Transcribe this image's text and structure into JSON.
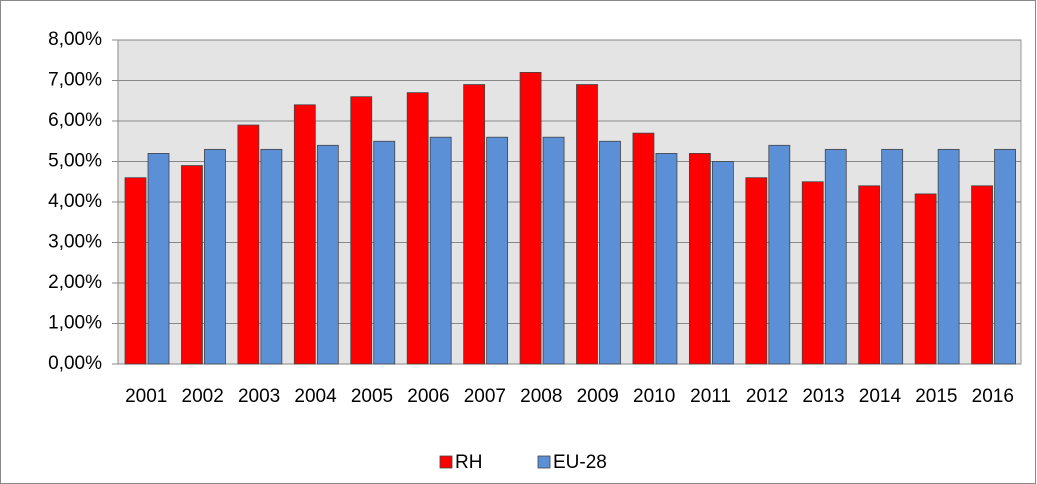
{
  "chart_data": {
    "type": "bar",
    "categories": [
      "2001",
      "2002",
      "2003",
      "2004",
      "2005",
      "2006",
      "2007",
      "2008",
      "2009",
      "2010",
      "2011",
      "2012",
      "2013",
      "2014",
      "2015",
      "2016"
    ],
    "series": [
      {
        "name": "RH",
        "color": "#ff0000",
        "values": [
          4.6,
          4.9,
          5.9,
          6.4,
          6.6,
          6.7,
          6.9,
          7.2,
          6.9,
          5.7,
          5.2,
          4.6,
          4.5,
          4.4,
          4.2,
          4.4
        ]
      },
      {
        "name": "EU-28",
        "color": "#5b8fd6",
        "values": [
          5.2,
          5.3,
          5.3,
          5.4,
          5.5,
          5.6,
          5.6,
          5.6,
          5.5,
          5.2,
          5.0,
          5.4,
          5.3,
          5.3,
          5.3,
          5.3
        ]
      }
    ],
    "ylim": [
      0,
      8
    ],
    "yticks": [
      {
        "value": 0,
        "label": "0,00%"
      },
      {
        "value": 1,
        "label": "1,00%"
      },
      {
        "value": 2,
        "label": "2,00%"
      },
      {
        "value": 3,
        "label": "3,00%"
      },
      {
        "value": 4,
        "label": "4,00%"
      },
      {
        "value": 5,
        "label": "5,00%"
      },
      {
        "value": 6,
        "label": "6,00%"
      },
      {
        "value": 7,
        "label": "7,00%"
      },
      {
        "value": 8,
        "label": "8,00%"
      }
    ],
    "grid": true,
    "legend": "bottom"
  }
}
